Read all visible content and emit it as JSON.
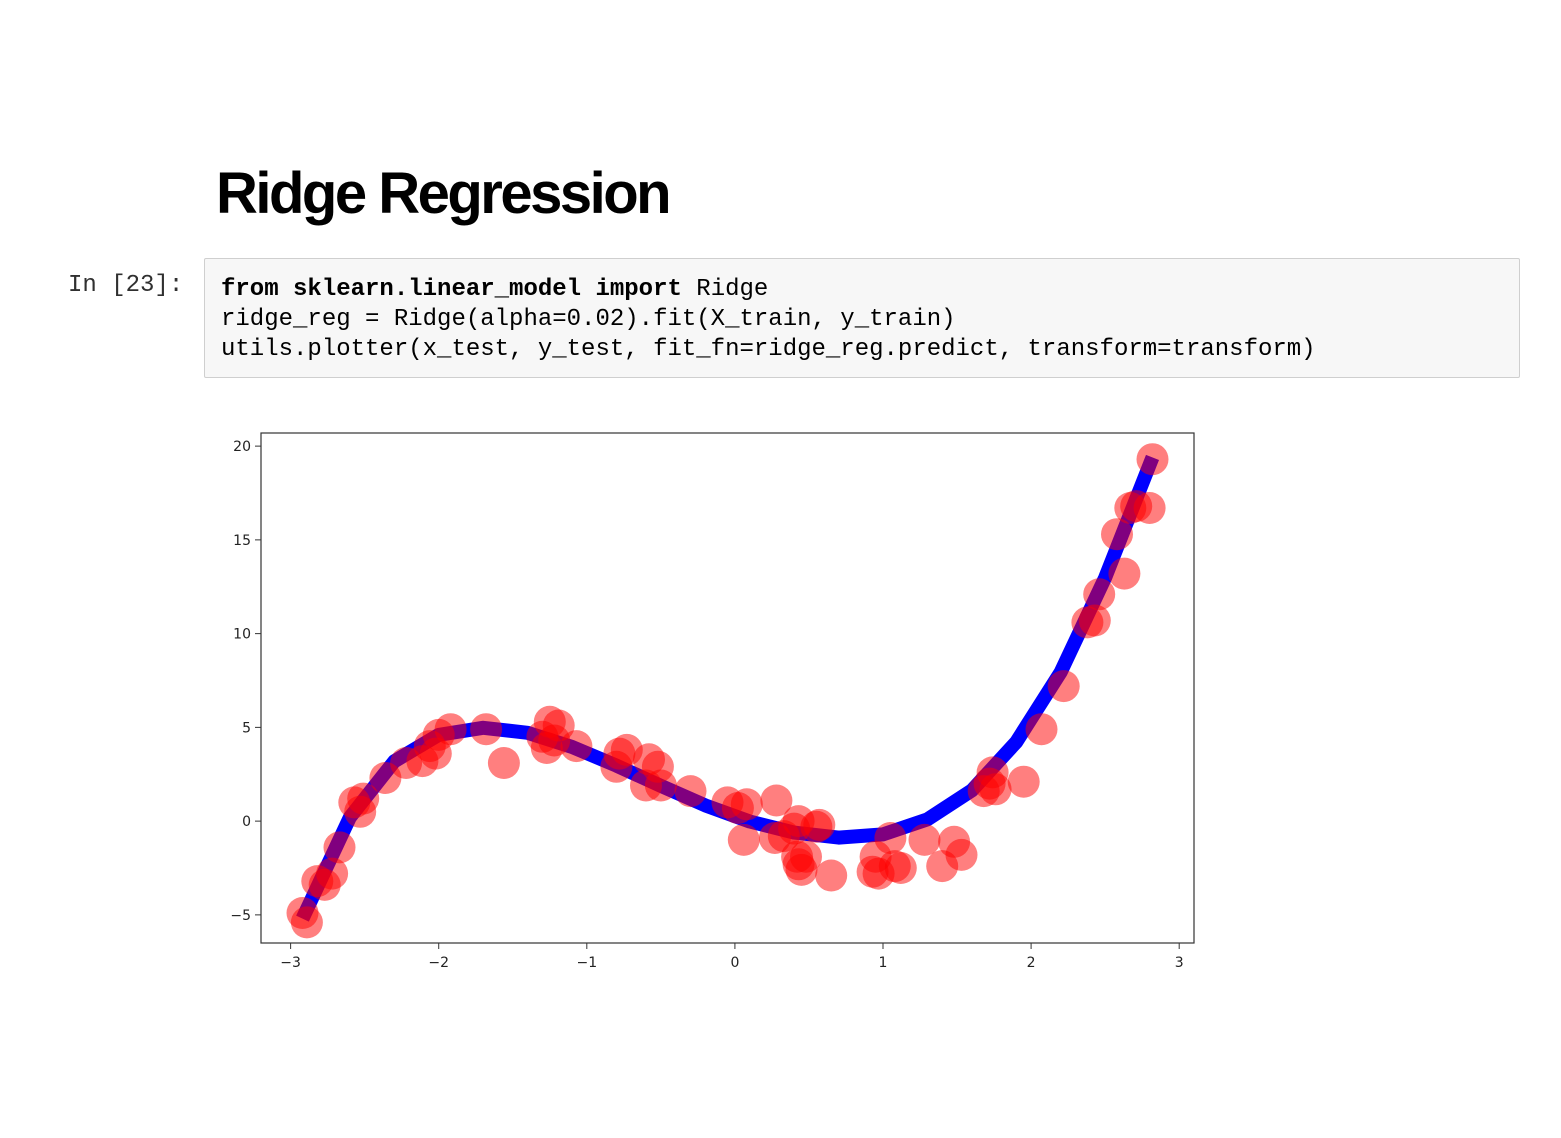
{
  "markdown": {
    "heading": "Ridge Regression"
  },
  "cell": {
    "prompt": "In [23]:",
    "code": {
      "line1": {
        "kw_from": "from",
        "module": "sklearn.linear_model",
        "kw_import": "import",
        "name": "Ridge"
      },
      "line2": "ridge_reg = Ridge(alpha=0.02).fit(X_train, y_train)",
      "line3": "utils.plotter(x_test, y_test, fit_fn=ridge_reg.predict, transform=transform)"
    }
  },
  "chart_data": {
    "type": "scatter",
    "title": "",
    "xlabel": "",
    "ylabel": "",
    "xlim": [
      -3.2,
      3.1
    ],
    "ylim": [
      -6.5,
      20.7
    ],
    "xticks": [
      -3,
      -2,
      -1,
      0,
      1,
      2,
      3
    ],
    "yticks": [
      -5,
      0,
      5,
      10,
      15,
      20
    ],
    "xtick_labels": [
      "−3",
      "−2",
      "−1",
      "0",
      "1",
      "2",
      "3"
    ],
    "ytick_labels": [
      "−5",
      "0",
      "5",
      "10",
      "15",
      "20"
    ],
    "grid": false,
    "legend": "none",
    "series": [
      {
        "kind": "points",
        "color": "#ff0000",
        "opacity": 0.5,
        "points": [
          [
            -2.92,
            -4.9
          ],
          [
            -2.89,
            -5.4
          ],
          [
            -2.82,
            -3.2
          ],
          [
            -2.77,
            -3.4
          ],
          [
            -2.72,
            -2.8
          ],
          [
            -2.67,
            -1.4
          ],
          [
            -2.57,
            1.0
          ],
          [
            -2.53,
            0.5
          ],
          [
            -2.51,
            1.2
          ],
          [
            -2.36,
            2.3
          ],
          [
            -2.22,
            3.1
          ],
          [
            -2.11,
            3.2
          ],
          [
            -2.06,
            4.0
          ],
          [
            -2.02,
            3.6
          ],
          [
            -2.0,
            4.6
          ],
          [
            -1.92,
            4.9
          ],
          [
            -1.68,
            4.9
          ],
          [
            -1.56,
            3.1
          ],
          [
            -1.3,
            4.5
          ],
          [
            -1.27,
            3.9
          ],
          [
            -1.25,
            5.3
          ],
          [
            -1.22,
            4.3
          ],
          [
            -1.19,
            5.1
          ],
          [
            -1.07,
            4.0
          ],
          [
            -0.8,
            2.9
          ],
          [
            -0.78,
            3.6
          ],
          [
            -0.73,
            3.8
          ],
          [
            -0.6,
            1.9
          ],
          [
            -0.58,
            3.3
          ],
          [
            -0.52,
            2.9
          ],
          [
            -0.5,
            1.9
          ],
          [
            -0.3,
            1.6
          ],
          [
            -0.05,
            1.0
          ],
          [
            0.02,
            0.7
          ],
          [
            0.08,
            0.9
          ],
          [
            0.06,
            -1.0
          ],
          [
            0.28,
            1.1
          ],
          [
            0.27,
            -0.9
          ],
          [
            0.33,
            -0.8
          ],
          [
            0.4,
            -0.4
          ],
          [
            0.43,
            0.0
          ],
          [
            0.42,
            -1.9
          ],
          [
            0.43,
            -2.3
          ],
          [
            0.45,
            -2.6
          ],
          [
            0.48,
            -1.9
          ],
          [
            0.55,
            -0.3
          ],
          [
            0.57,
            -0.2
          ],
          [
            0.65,
            -2.9
          ],
          [
            0.93,
            -2.7
          ],
          [
            0.95,
            -1.9
          ],
          [
            0.97,
            -2.8
          ],
          [
            1.05,
            -0.9
          ],
          [
            1.08,
            -2.4
          ],
          [
            1.12,
            -2.5
          ],
          [
            1.28,
            -1.0
          ],
          [
            1.4,
            -2.4
          ],
          [
            1.48,
            -1.1
          ],
          [
            1.53,
            -1.8
          ],
          [
            1.68,
            1.6
          ],
          [
            1.72,
            2.0
          ],
          [
            1.74,
            2.6
          ],
          [
            1.76,
            1.7
          ],
          [
            1.95,
            2.1
          ],
          [
            2.07,
            4.9
          ],
          [
            2.22,
            7.2
          ],
          [
            2.38,
            10.6
          ],
          [
            2.43,
            10.7
          ],
          [
            2.46,
            12.1
          ],
          [
            2.58,
            15.3
          ],
          [
            2.63,
            13.2
          ],
          [
            2.67,
            16.7
          ],
          [
            2.71,
            16.8
          ],
          [
            2.8,
            16.7
          ],
          [
            2.82,
            19.3
          ]
        ]
      },
      {
        "kind": "fit_line",
        "color": "#0000ff",
        "x": [
          -2.92,
          -2.6,
          -2.3,
          -2.0,
          -1.7,
          -1.4,
          -1.1,
          -0.8,
          -0.5,
          -0.2,
          0.1,
          0.4,
          0.7,
          1.0,
          1.3,
          1.6,
          1.9,
          2.2,
          2.5,
          2.82
        ],
        "y": [
          -5.2,
          0.2,
          3.19,
          4.6,
          4.98,
          4.71,
          3.96,
          2.96,
          1.88,
          0.84,
          -0.02,
          -0.61,
          -0.88,
          -0.71,
          0.09,
          1.64,
          4.22,
          7.95,
          12.98,
          19.4
        ]
      }
    ]
  }
}
